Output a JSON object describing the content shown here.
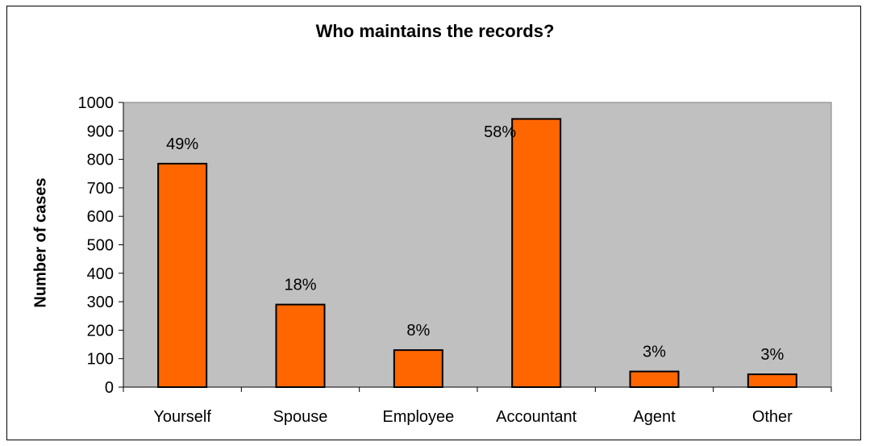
{
  "chart_data": {
    "type": "bar",
    "title": "Who maintains the records?",
    "xlabel": "",
    "ylabel": "Number of cases",
    "categories": [
      "Yourself",
      "Spouse",
      "Employee",
      "Accountant",
      "Agent",
      "Other"
    ],
    "values": [
      785,
      290,
      130,
      942,
      55,
      45
    ],
    "data_labels": [
      "49%",
      "18%",
      "8%",
      "58%",
      "3%",
      "3%"
    ],
    "ylim": [
      0,
      1000
    ],
    "yticks": [
      0,
      100,
      200,
      300,
      400,
      500,
      600,
      700,
      800,
      900,
      1000
    ],
    "grid": false,
    "legend": "none",
    "colors": {
      "bar_fill": "#FF6600",
      "bar_stroke": "#000000",
      "plot_background": "#C0C0C0"
    }
  }
}
